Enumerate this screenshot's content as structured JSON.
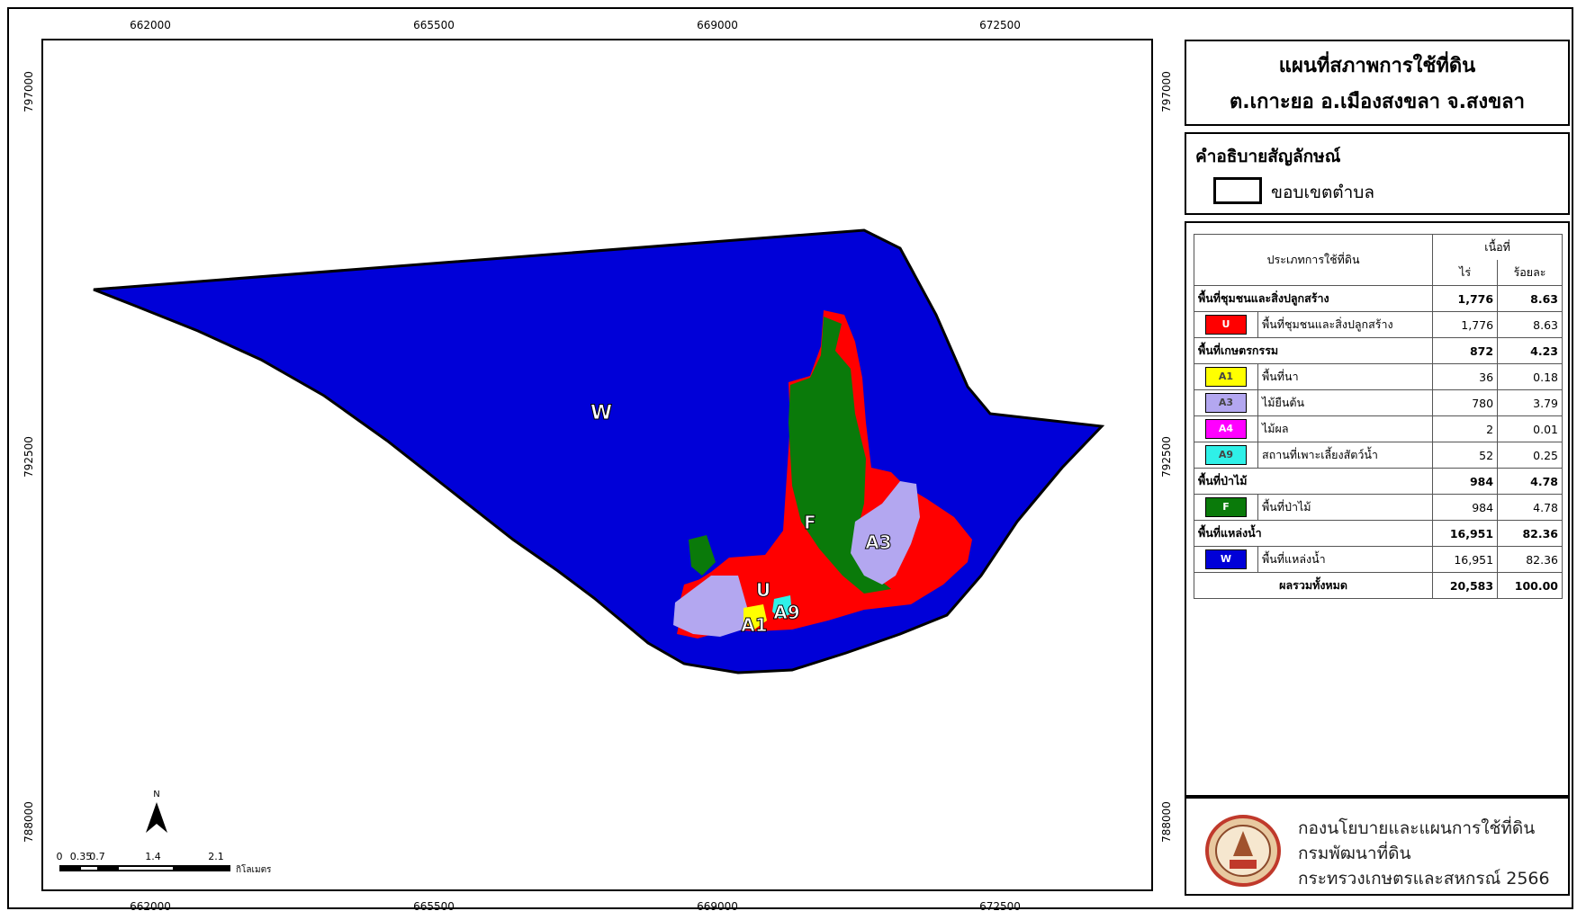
{
  "map": {
    "x_ticks": [
      "662000",
      "665500",
      "669000",
      "672500"
    ],
    "y_ticks": [
      "797000",
      "792500",
      "788000"
    ],
    "zone_labels": {
      "water": "W",
      "forest": "F",
      "urban": "U",
      "field_crop": "A3",
      "paddy": "A1",
      "aquaculture": "A9"
    },
    "colors": {
      "water": "#0000d8",
      "urban": "#ff0000",
      "forest": "#0a7a0a",
      "field_crop": "#b3a7f0",
      "paddy": "#ffff00",
      "aquaculture": "#2ff0e8"
    },
    "scale_bar": {
      "ticks": [
        "0",
        "0.35",
        "0.7",
        "1.4",
        "2.1"
      ],
      "unit": "กิโลเมตร"
    },
    "north_label": "N"
  },
  "title": {
    "line1": "แผนที่สภาพการใช้ที่ดิน",
    "line2": "ต.เกาะยอ อ.เมืองสงขลา จ.สงขลา"
  },
  "legend": {
    "title": "คำอธิบายสัญลักษณ์",
    "boundary_label": "ขอบเขตตำบล"
  },
  "table": {
    "header": {
      "type": "ประเภทการใช้ที่ดิน",
      "area": "เนื้อที่",
      "rai": "ไร่",
      "percent": "ร้อยละ"
    },
    "rows": [
      {
        "kind": "cat",
        "label": "พื้นที่ชุมชนและสิ่งปลูกสร้าง",
        "rai": "1,776",
        "pct": "8.63"
      },
      {
        "kind": "sub",
        "code": "U",
        "color": "#ff0000",
        "label": "พื้นที่ชุมชนและสิ่งปลูกสร้าง",
        "rai": "1,776",
        "pct": "8.63"
      },
      {
        "kind": "cat",
        "label": "พื้นที่เกษตรกรรม",
        "rai": "872",
        "pct": "4.23"
      },
      {
        "kind": "sub",
        "code": "A1",
        "color": "#ffff00",
        "label": "พื้นที่นา",
        "rai": "36",
        "pct": "0.18"
      },
      {
        "kind": "sub",
        "code": "A3",
        "color": "#b3a7f0",
        "label": "ไม้ยืนต้น",
        "rai": "780",
        "pct": "3.79"
      },
      {
        "kind": "sub",
        "code": "A4",
        "color": "#ff00ff",
        "label": "ไม้ผล",
        "rai": "2",
        "pct": "0.01"
      },
      {
        "kind": "sub",
        "code": "A9",
        "color": "#2ff0e8",
        "label": "สถานที่เพาะเลี้ยงสัตว์น้ำ",
        "rai": "52",
        "pct": "0.25"
      },
      {
        "kind": "cat",
        "label": "พื้นที่ป่าไม้",
        "rai": "984",
        "pct": "4.78"
      },
      {
        "kind": "sub",
        "code": "F",
        "color": "#0a7a0a",
        "label": "พื้นที่ป่าไม้",
        "rai": "984",
        "pct": "4.78"
      },
      {
        "kind": "cat",
        "label": "พื้นที่แหล่งน้ำ",
        "rai": "16,951",
        "pct": "82.36"
      },
      {
        "kind": "sub",
        "code": "W",
        "color": "#0000d8",
        "label": "พื้นที่แหล่งน้ำ",
        "rai": "16,951",
        "pct": "82.36"
      }
    ],
    "total": {
      "label": "ผลรวมทั้งหมด",
      "rai": "20,583",
      "pct": "100.00"
    }
  },
  "credit": {
    "line1": "กองนโยบายและแผนการใช้ที่ดิน",
    "line2": "กรมพัฒนาที่ดิน",
    "line3": "กระทรวงเกษตรและสหกรณ์ 2566"
  }
}
